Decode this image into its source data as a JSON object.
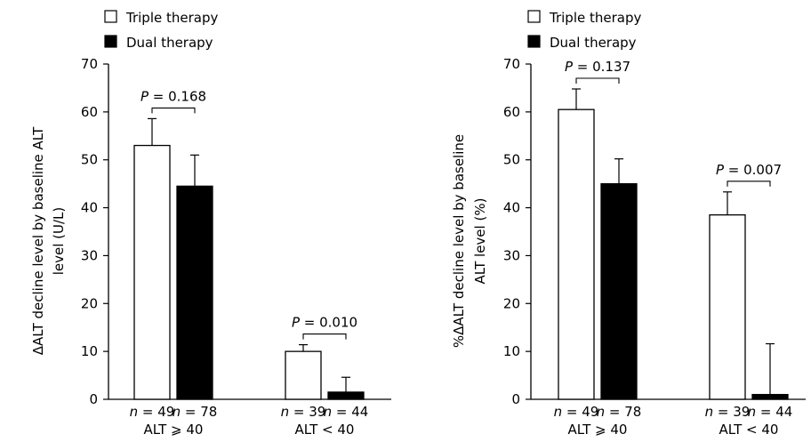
{
  "chart_data": [
    {
      "type": "bar",
      "ylabel": [
        "ΔALT decline level by baseline ALT",
        "level (U/L)"
      ],
      "ylim": [
        0,
        70
      ],
      "yticks": [
        0,
        10,
        20,
        30,
        40,
        50,
        60,
        70
      ],
      "grid": false,
      "legend_position": "top-left",
      "series": [
        {
          "name": "Triple therapy",
          "fill": "#ffffff"
        },
        {
          "name": "Dual therapy",
          "fill": "#000000"
        }
      ],
      "groups": [
        {
          "category": "ALT ⩾ 40",
          "p_label": "P = 0.168",
          "bars": [
            {
              "series": "Triple therapy",
              "value": 53.0,
              "error": 5.6,
              "n_label": "n = 49"
            },
            {
              "series": "Dual therapy",
              "value": 44.5,
              "error": 6.5,
              "n_label": "n = 78"
            }
          ]
        },
        {
          "category": "ALT < 40",
          "p_label": "P = 0.010",
          "bars": [
            {
              "series": "Triple therapy",
              "value": 10.0,
              "error": 1.4,
              "n_label": "n = 39"
            },
            {
              "series": "Dual therapy",
              "value": 1.5,
              "error": 3.1,
              "n_label": "n = 44"
            }
          ]
        }
      ]
    },
    {
      "type": "bar",
      "ylabel": [
        "%ΔALT decline level by baseline",
        "ALT level (%)"
      ],
      "ylim": [
        0,
        70
      ],
      "yticks": [
        0,
        10,
        20,
        30,
        40,
        50,
        60,
        70
      ],
      "grid": false,
      "legend_position": "top-left",
      "series": [
        {
          "name": "Triple therapy",
          "fill": "#ffffff"
        },
        {
          "name": "Dual therapy",
          "fill": "#000000"
        }
      ],
      "groups": [
        {
          "category": "ALT ⩾ 40",
          "p_label": "P = 0.137",
          "bars": [
            {
              "series": "Triple therapy",
              "value": 60.5,
              "error": 4.3,
              "n_label": "n = 49"
            },
            {
              "series": "Dual therapy",
              "value": 45.0,
              "error": 5.2,
              "n_label": "n = 78"
            }
          ]
        },
        {
          "category": "ALT < 40",
          "p_label": "P = 0.007",
          "bars": [
            {
              "series": "Triple therapy",
              "value": 38.5,
              "error": 4.8,
              "n_label": "n = 39"
            },
            {
              "series": "Dual therapy",
              "value": 1.0,
              "error": 10.6,
              "n_label": "n = 44"
            }
          ]
        }
      ]
    }
  ]
}
